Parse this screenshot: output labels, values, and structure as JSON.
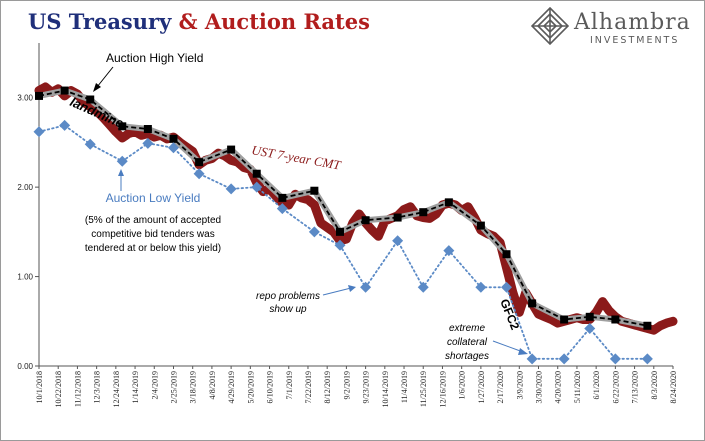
{
  "header": {
    "title_part1": "US Treasury",
    "title_part2": "& Auction Rates"
  },
  "brand": {
    "name": "Alhambra",
    "sub": "INVESTMENTS"
  },
  "chart_data": {
    "type": "line",
    "title": "",
    "xlabel": "",
    "ylabel": "",
    "ylim": [
      0,
      3.5
    ],
    "y_ticks": [
      "0.00",
      "1.00",
      "2.00",
      "3.00"
    ],
    "x_tick_labels": [
      "10/1/2018",
      "10/22/2018",
      "11/12/2018",
      "12/3/2018",
      "12/24/2018",
      "1/14/2019",
      "2/4/2019",
      "2/25/2019",
      "3/18/2019",
      "4/8/2019",
      "4/29/2019",
      "5/20/2019",
      "6/10/2019",
      "7/1/2019",
      "7/22/2019",
      "8/12/2019",
      "9/2/2019",
      "9/23/2019",
      "10/14/2019",
      "11/4/2019",
      "11/25/2019",
      "12/16/2019",
      "1/6/2020",
      "1/27/2020",
      "2/17/2020",
      "3/9/2020",
      "3/30/2020",
      "4/20/2020",
      "5/11/2020",
      "6/1/2020",
      "6/22/2020",
      "7/13/2020",
      "8/3/2020",
      "8/24/2020"
    ],
    "series": [
      {
        "name": "UST 7-year CMT",
        "color": "#8b1a1a",
        "points": [
          [
            "10/1/2018",
            3.08
          ],
          [
            "10/8/2018",
            3.12
          ],
          [
            "10/15/2018",
            3.06
          ],
          [
            "10/22/2018",
            3.1
          ],
          [
            "10/29/2018",
            3.02
          ],
          [
            "11/5/2018",
            3.08
          ],
          [
            "11/12/2018",
            3.04
          ],
          [
            "11/19/2018",
            2.95
          ],
          [
            "11/26/2018",
            2.9
          ],
          [
            "12/3/2018",
            2.85
          ],
          [
            "12/10/2018",
            2.78
          ],
          [
            "12/17/2018",
            2.7
          ],
          [
            "12/24/2018",
            2.62
          ],
          [
            "12/31/2018",
            2.55
          ],
          [
            "1/7/2019",
            2.6
          ],
          [
            "1/14/2019",
            2.62
          ],
          [
            "1/21/2019",
            2.58
          ],
          [
            "1/28/2019",
            2.6
          ],
          [
            "2/4/2019",
            2.56
          ],
          [
            "2/11/2019",
            2.58
          ],
          [
            "2/18/2019",
            2.54
          ],
          [
            "2/25/2019",
            2.56
          ],
          [
            "3/4/2019",
            2.5
          ],
          [
            "3/11/2019",
            2.45
          ],
          [
            "3/18/2019",
            2.4
          ],
          [
            "3/25/2019",
            2.25
          ],
          [
            "4/1/2019",
            2.3
          ],
          [
            "4/8/2019",
            2.32
          ],
          [
            "4/15/2019",
            2.38
          ],
          [
            "4/22/2019",
            2.35
          ],
          [
            "4/29/2019",
            2.3
          ],
          [
            "5/6/2019",
            2.28
          ],
          [
            "5/13/2019",
            2.22
          ],
          [
            "5/20/2019",
            2.2
          ],
          [
            "5/27/2019",
            2.05
          ],
          [
            "6/3/2019",
            1.95
          ],
          [
            "6/10/2019",
            1.98
          ],
          [
            "6/17/2019",
            1.9
          ],
          [
            "6/24/2019",
            1.82
          ],
          [
            "7/1/2019",
            1.8
          ],
          [
            "7/8/2019",
            1.92
          ],
          [
            "7/15/2019",
            1.88
          ],
          [
            "7/22/2019",
            1.86
          ],
          [
            "7/29/2019",
            1.8
          ],
          [
            "8/5/2019",
            1.6
          ],
          [
            "8/12/2019",
            1.55
          ],
          [
            "8/19/2019",
            1.5
          ],
          [
            "8/26/2019",
            1.4
          ],
          [
            "9/2/2019",
            1.42
          ],
          [
            "9/9/2019",
            1.6
          ],
          [
            "9/16/2019",
            1.7
          ],
          [
            "9/23/2019",
            1.6
          ],
          [
            "9/30/2019",
            1.52
          ],
          [
            "10/7/2019",
            1.45
          ],
          [
            "10/14/2019",
            1.62
          ],
          [
            "10/21/2019",
            1.65
          ],
          [
            "10/28/2019",
            1.68
          ],
          [
            "11/4/2019",
            1.75
          ],
          [
            "11/11/2019",
            1.78
          ],
          [
            "11/18/2019",
            1.68
          ],
          [
            "11/25/2019",
            1.66
          ],
          [
            "12/2/2019",
            1.65
          ],
          [
            "12/9/2019",
            1.7
          ],
          [
            "12/16/2019",
            1.8
          ],
          [
            "12/23/2019",
            1.82
          ],
          [
            "12/30/2019",
            1.8
          ],
          [
            "1/6/2020",
            1.74
          ],
          [
            "1/13/2020",
            1.78
          ],
          [
            "1/20/2020",
            1.66
          ],
          [
            "1/27/2020",
            1.52
          ],
          [
            "2/3/2020",
            1.48
          ],
          [
            "2/10/2020",
            1.45
          ],
          [
            "2/17/2020",
            1.38
          ],
          [
            "2/24/2020",
            1.1
          ],
          [
            "3/2/2020",
            0.82
          ],
          [
            "3/9/2020",
            0.6
          ],
          [
            "3/16/2020",
            0.82
          ],
          [
            "3/23/2020",
            0.7
          ],
          [
            "3/30/2020",
            0.58
          ],
          [
            "4/6/2020",
            0.55
          ],
          [
            "4/13/2020",
            0.52
          ],
          [
            "4/20/2020",
            0.48
          ],
          [
            "4/27/2020",
            0.5
          ],
          [
            "5/4/2020",
            0.52
          ],
          [
            "5/11/2020",
            0.54
          ],
          [
            "5/18/2020",
            0.52
          ],
          [
            "5/25/2020",
            0.52
          ],
          [
            "6/1/2020",
            0.6
          ],
          [
            "6/8/2020",
            0.72
          ],
          [
            "6/15/2020",
            0.62
          ],
          [
            "6/22/2020",
            0.55
          ],
          [
            "6/29/2020",
            0.5
          ],
          [
            "7/6/2020",
            0.48
          ],
          [
            "7/13/2020",
            0.46
          ],
          [
            "7/20/2020",
            0.44
          ],
          [
            "7/27/2020",
            0.42
          ],
          [
            "8/3/2020",
            0.4
          ],
          [
            "8/10/2020",
            0.45
          ],
          [
            "8/17/2020",
            0.48
          ],
          [
            "8/24/2020",
            0.5
          ]
        ]
      },
      {
        "name": "Auction High Yield",
        "color": "#000000",
        "points": [
          [
            "10/1/2018",
            3.02
          ],
          [
            "10/29/2018",
            3.08
          ],
          [
            "11/26/2018",
            2.98
          ],
          [
            "12/31/2018",
            2.68
          ],
          [
            "1/28/2019",
            2.65
          ],
          [
            "2/25/2019",
            2.54
          ],
          [
            "3/25/2019",
            2.28
          ],
          [
            "4/29/2019",
            2.42
          ],
          [
            "5/27/2019",
            2.15
          ],
          [
            "6/24/2019",
            1.88
          ],
          [
            "7/29/2019",
            1.96
          ],
          [
            "8/26/2019",
            1.5
          ],
          [
            "9/23/2019",
            1.63
          ],
          [
            "10/28/2019",
            1.66
          ],
          [
            "11/25/2019",
            1.72
          ],
          [
            "12/23/2019",
            1.83
          ],
          [
            "1/27/2020",
            1.57
          ],
          [
            "2/24/2020",
            1.25
          ],
          [
            "3/23/2020",
            0.7
          ],
          [
            "4/27/2020",
            0.52
          ],
          [
            "5/25/2020",
            0.55
          ],
          [
            "6/22/2020",
            0.52
          ],
          [
            "7/27/2020",
            0.45
          ]
        ]
      },
      {
        "name": "Auction Low Yield",
        "color": "#5b8ac6",
        "points": [
          [
            "10/1/2018",
            2.62
          ],
          [
            "10/29/2018",
            2.69
          ],
          [
            "11/26/2018",
            2.48
          ],
          [
            "12/31/2018",
            2.29
          ],
          [
            "1/28/2019",
            2.49
          ],
          [
            "2/25/2019",
            2.44
          ],
          [
            "3/25/2019",
            2.15
          ],
          [
            "4/29/2019",
            1.98
          ],
          [
            "5/27/2019",
            2.0
          ],
          [
            "6/24/2019",
            1.76
          ],
          [
            "7/29/2019",
            1.5
          ],
          [
            "8/26/2019",
            1.35
          ],
          [
            "9/23/2019",
            0.88
          ],
          [
            "10/28/2019",
            1.4
          ],
          [
            "11/25/2019",
            0.88
          ],
          [
            "12/23/2019",
            1.29
          ],
          [
            "1/27/2020",
            0.88
          ],
          [
            "2/24/2020",
            0.88
          ],
          [
            "3/23/2020",
            0.08
          ],
          [
            "4/27/2020",
            0.08
          ],
          [
            "5/25/2020",
            0.42
          ],
          [
            "6/22/2020",
            0.08
          ],
          [
            "7/27/2020",
            0.08
          ]
        ]
      }
    ],
    "annotations": {
      "high_yield": "Auction High Yield",
      "cmt": "UST 7-year CMT",
      "landmine": "landmine",
      "low_yield": "Auction Low Yield",
      "low_desc1": "(5% of the amount of accepted",
      "low_desc2": "competitive bid tenders was",
      "low_desc3": "tendered at or below this yield)",
      "repo1": "repo problems",
      "repo2": "show up",
      "gfc2": "GFC2",
      "ext1": "extreme",
      "ext2": "collateral",
      "ext3": "shortages"
    }
  }
}
